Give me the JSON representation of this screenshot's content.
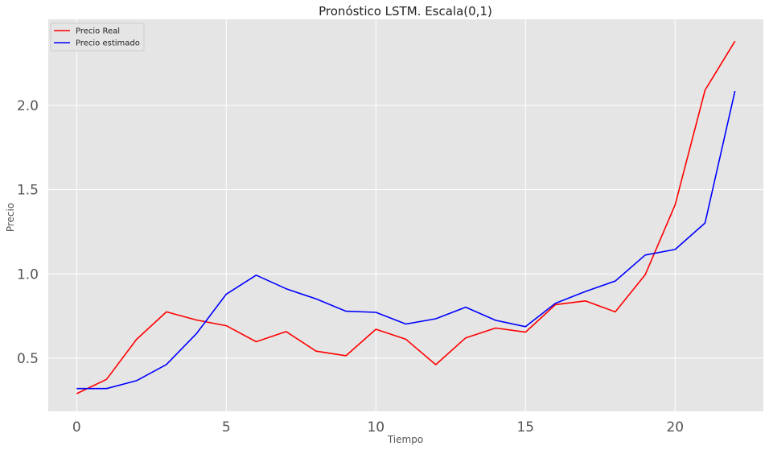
{
  "chart_data": {
    "type": "line",
    "title": "Pronóstico LSTM. Escala(0,1)",
    "xlabel": "Tiempo",
    "ylabel": "Precio",
    "x": [
      0,
      1,
      2,
      3,
      4,
      5,
      6,
      7,
      8,
      9,
      10,
      11,
      12,
      13,
      14,
      15,
      16,
      17,
      18,
      19,
      20,
      21,
      22
    ],
    "xlim": [
      -0.95,
      22.95
    ],
    "ylim": [
      0.185,
      2.51
    ],
    "xticks": [
      0,
      5,
      10,
      15,
      20
    ],
    "xtick_labels": [
      "0",
      "5",
      "10",
      "15",
      "20"
    ],
    "yticks": [
      0.5,
      1.0,
      1.5,
      2.0
    ],
    "ytick_labels": [
      "0.5",
      "1.0",
      "1.5",
      "2.0"
    ],
    "grid": true,
    "legend_position": "top-left",
    "series": [
      {
        "name": "Precio Real",
        "color": "#ff0000",
        "values": [
          0.29,
          0.375,
          0.612,
          0.775,
          0.727,
          0.693,
          0.598,
          0.658,
          0.542,
          0.515,
          0.672,
          0.613,
          0.462,
          0.621,
          0.679,
          0.655,
          0.818,
          0.84,
          0.775,
          0.995,
          1.41,
          2.09,
          2.38
        ]
      },
      {
        "name": "Precio estimado",
        "color": "#0000ff",
        "values": [
          0.32,
          0.32,
          0.367,
          0.463,
          0.645,
          0.88,
          0.993,
          0.912,
          0.852,
          0.779,
          0.772,
          0.703,
          0.734,
          0.803,
          0.725,
          0.687,
          0.826,
          0.896,
          0.958,
          1.112,
          1.145,
          1.302,
          2.085
        ]
      }
    ]
  }
}
